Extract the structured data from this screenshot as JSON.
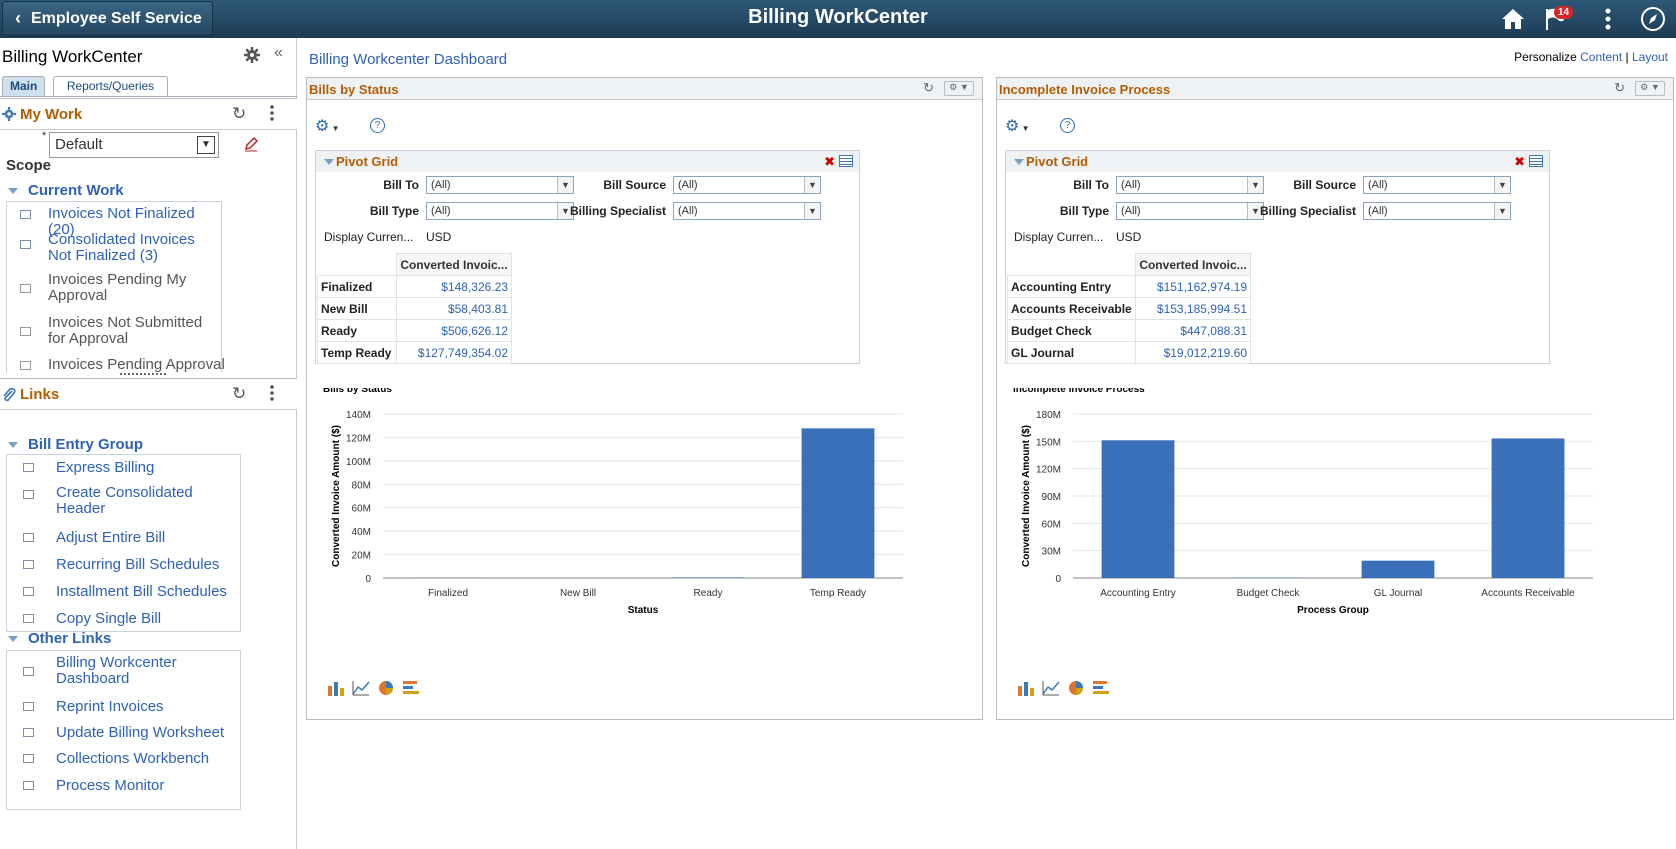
{
  "header": {
    "back_label": "Employee Self Service",
    "title": "Billing WorkCenter",
    "notification_count": "14"
  },
  "left": {
    "title": "Billing WorkCenter",
    "tabs": [
      "Main",
      "Reports/Queries"
    ],
    "my_work": {
      "title": "My Work",
      "required_mark": "*",
      "filter_value": "Default",
      "scope_label": "Scope",
      "group": "Current Work",
      "items": [
        {
          "label": "Invoices Not Finalized (20)",
          "link": true
        },
        {
          "label": "Consolidated Invoices Not Finalized (3)",
          "link": true
        },
        {
          "label": "Invoices Pending My Approval",
          "link": false
        },
        {
          "label": "Invoices Not Submitted for Approval",
          "link": false
        },
        {
          "label": "Invoices Pending Approval",
          "link": false
        }
      ]
    },
    "links": {
      "title": "Links",
      "groups": [
        {
          "title": "Bill Entry Group",
          "items": [
            "Express Billing",
            "Create Consolidated Header",
            "Adjust Entire Bill",
            "Recurring Bill Schedules",
            "Installment Bill Schedules",
            "Copy Single Bill"
          ]
        },
        {
          "title": "Other Links",
          "items": [
            "Billing Workcenter Dashboard",
            "Reprint Invoices",
            "Update Billing Worksheet",
            "Collections Workbench",
            "Process Monitor"
          ]
        }
      ]
    }
  },
  "main": {
    "title": "Billing Workcenter Dashboard",
    "personalize": {
      "label": "Personalize",
      "content": "Content",
      "sep": "|",
      "layout": "Layout"
    },
    "pagelets": [
      {
        "title": "Bills by Status",
        "pivot_title": "Pivot Grid",
        "filters": {
          "bill_to": "Bill To",
          "bill_source": "Bill Source",
          "bill_type": "Bill Type",
          "billing_specialist": "Billing Specialist",
          "all": "(All)"
        },
        "currency_label": "Display Curren...",
        "currency": "USD",
        "column_header": "Converted Invoic...",
        "rows": [
          {
            "label": "Finalized",
            "value": "$148,326.23"
          },
          {
            "label": "New Bill",
            "value": "$58,403.81"
          },
          {
            "label": "Ready",
            "value": "$506,626.12"
          },
          {
            "label": "Temp Ready",
            "value": "$127,749,354.02"
          }
        ]
      },
      {
        "title": "Incomplete Invoice Process",
        "pivot_title": "Pivot Grid",
        "filters": {
          "bill_to": "Bill To",
          "bill_source": "Bill Source",
          "bill_type": "Bill Type",
          "billing_specialist": "Billing Specialist",
          "all": "(All)"
        },
        "currency_label": "Display Curren...",
        "currency": "USD",
        "column_header": "Converted Invoic...",
        "rows": [
          {
            "label": "Accounting Entry",
            "value": "$151,162,974.19"
          },
          {
            "label": "Accounts Receivable",
            "value": "$153,185,994.51"
          },
          {
            "label": "Budget Check",
            "value": "$447,088.31"
          },
          {
            "label": "GL Journal",
            "value": "$19,012,219.60"
          }
        ]
      }
    ]
  },
  "chart_data": [
    {
      "type": "bar",
      "title": "Bills by Status",
      "xlabel": "Status",
      "ylabel": "Converted Invoice Amount ($)",
      "categories": [
        "Finalized",
        "New Bill",
        "Ready",
        "Temp Ready"
      ],
      "values": [
        148326.23,
        58403.81,
        506626.12,
        127749354.02
      ],
      "ylim": [
        0,
        140000000
      ],
      "yticks": [
        "0",
        "20M",
        "40M",
        "60M",
        "80M",
        "100M",
        "120M",
        "140M"
      ],
      "color": "#3a6fba",
      "grid": true
    },
    {
      "type": "bar",
      "title": "Incomplete Invoice Process",
      "xlabel": "Process Group",
      "ylabel": "Converted Invoice Amount ($)",
      "categories": [
        "Accounting Entry",
        "Budget Check",
        "GL Journal",
        "Accounts Receivable"
      ],
      "values": [
        151162974.19,
        447088.31,
        19012219.6,
        153185994.51
      ],
      "ylim": [
        0,
        180000000
      ],
      "yticks": [
        "0",
        "30M",
        "60M",
        "90M",
        "120M",
        "150M",
        "180M"
      ],
      "color": "#3a6fba",
      "grid": true
    }
  ]
}
